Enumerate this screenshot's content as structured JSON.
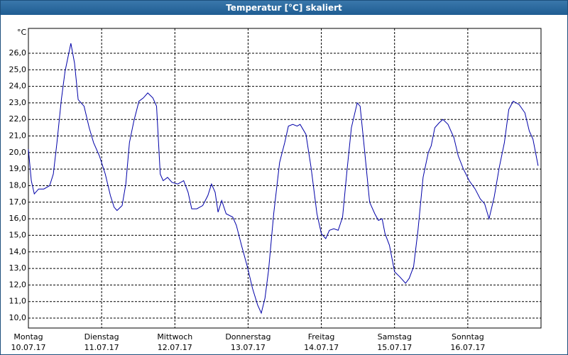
{
  "chart_data": {
    "type": "line",
    "title": "Temperatur [°C] skaliert",
    "y_unit": "°C",
    "x": [
      0,
      0.04,
      0.08,
      0.14,
      0.21,
      0.29,
      0.34,
      0.39,
      0.45,
      0.5,
      0.58,
      0.63,
      0.68,
      0.76,
      0.83,
      0.89,
      0.97,
      1.05,
      1.12,
      1.17,
      1.21,
      1.28,
      1.33,
      1.38,
      1.44,
      1.51,
      1.57,
      1.63,
      1.7,
      1.75,
      1.8,
      1.84,
      1.9,
      1.96,
      2.04,
      2.12,
      2.18,
      2.23,
      2.3,
      2.38,
      2.45,
      2.5,
      2.55,
      2.59,
      2.64,
      2.7,
      2.79,
      2.84,
      2.91,
      2.99,
      3.06,
      3.13,
      3.18,
      3.23,
      3.28,
      3.35,
      3.43,
      3.5,
      3.55,
      3.61,
      3.67,
      3.71,
      3.79,
      3.86,
      3.94,
      4,
      4.06,
      4.11,
      4.17,
      4.23,
      4.29,
      4.35,
      4.41,
      4.49,
      4.53,
      4.58,
      4.66,
      4.73,
      4.78,
      4.83,
      4.87,
      4.93,
      5,
      5.07,
      5.15,
      5.2,
      5.26,
      5.32,
      5.39,
      5.46,
      5.5,
      5.55,
      5.61,
      5.66,
      5.73,
      5.81,
      5.87,
      5.94,
      6.02,
      6.1,
      6.17,
      6.23,
      6.29,
      6.36,
      6.43,
      6.5,
      6.56,
      6.62,
      6.7,
      6.78,
      6.84,
      6.89,
      6.96
    ],
    "series": [
      {
        "color": "#0000a8",
        "values": [
          20.2,
          18.3,
          17.5,
          17.8,
          17.8,
          18.0,
          18.7,
          20.6,
          23.2,
          24.9,
          26.6,
          25.4,
          23.2,
          22.8,
          21.5,
          20.6,
          19.8,
          18.7,
          17.4,
          16.7,
          16.5,
          16.8,
          18.1,
          20.6,
          21.9,
          23.1,
          23.3,
          23.6,
          23.3,
          22.8,
          18.7,
          18.3,
          18.5,
          18.2,
          18.1,
          18.3,
          17.6,
          16.6,
          16.6,
          16.8,
          17.4,
          18.1,
          17.6,
          16.4,
          17.1,
          16.3,
          16.1,
          15.6,
          14.4,
          13.1,
          11.8,
          10.8,
          10.3,
          11.2,
          12.9,
          16.3,
          19.4,
          20.6,
          21.6,
          21.7,
          21.6,
          21.7,
          21.1,
          19.1,
          16.3,
          15.1,
          14.8,
          15.3,
          15.4,
          15.3,
          16.1,
          18.9,
          21.5,
          23.0,
          22.8,
          20.6,
          17.0,
          16.3,
          15.9,
          16.0,
          15.1,
          14.4,
          12.8,
          12.5,
          12.1,
          12.4,
          13.1,
          15.3,
          18.5,
          20.0,
          20.4,
          21.5,
          21.8,
          22.0,
          21.7,
          20.9,
          19.8,
          19.0,
          18.3,
          17.8,
          17.2,
          16.9,
          16.0,
          17.3,
          19.1,
          20.6,
          22.6,
          23.1,
          22.9,
          22.4,
          21.3,
          20.8,
          19.2
        ]
      }
    ],
    "xlim": [
      0,
      7
    ],
    "xticks": [
      {
        "value": 0,
        "label": "Montag"
      },
      {
        "value": 1,
        "label": "Dienstag"
      },
      {
        "value": 2,
        "label": "Mittwoch"
      },
      {
        "value": 3,
        "label": "Donnerstag"
      },
      {
        "value": 4,
        "label": "Freitag"
      },
      {
        "value": 5,
        "label": "Samstag"
      },
      {
        "value": 6,
        "label": "Sonntag"
      }
    ],
    "xtick_dates": [
      "10.07.17",
      "11.07.17",
      "12.07.17",
      "13.07.17",
      "14.07.17",
      "15.07.17",
      "16.07.17"
    ],
    "ylim": [
      9.4,
      27.5
    ],
    "yticks": [
      {
        "value": 10,
        "label": "10,0"
      },
      {
        "value": 11,
        "label": "11,0"
      },
      {
        "value": 12,
        "label": "12,0"
      },
      {
        "value": 13,
        "label": "13,0"
      },
      {
        "value": 14,
        "label": "14,0"
      },
      {
        "value": 15,
        "label": "15,0"
      },
      {
        "value": 16,
        "label": "16,0"
      },
      {
        "value": 17,
        "label": "17,0"
      },
      {
        "value": 18,
        "label": "18,0"
      },
      {
        "value": 19,
        "label": "19,0"
      },
      {
        "value": 20,
        "label": "20,0"
      },
      {
        "value": 21,
        "label": "21,0"
      },
      {
        "value": 22,
        "label": "22,0"
      },
      {
        "value": 23,
        "label": "23,0"
      },
      {
        "value": 24,
        "label": "24,0"
      },
      {
        "value": 25,
        "label": "25,0"
      },
      {
        "value": 26,
        "label": "26,0"
      }
    ],
    "grid": true
  }
}
